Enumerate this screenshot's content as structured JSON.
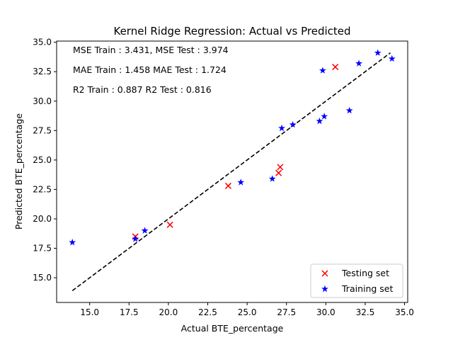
{
  "chart_data": {
    "type": "scatter",
    "title": "Kernel Ridge Regression: Actual vs Predicted",
    "xlabel": "Actual BTE_percentage",
    "ylabel": "Predicted BTE_percentage",
    "xlim": [
      12.9,
      35.2
    ],
    "ylim": [
      12.9,
      35.1
    ],
    "xticks": [
      15.0,
      17.5,
      20.0,
      22.5,
      25.0,
      27.5,
      30.0,
      32.5,
      35.0
    ],
    "yticks": [
      15.0,
      17.5,
      20.0,
      22.5,
      25.0,
      27.5,
      30.0,
      32.5,
      35.0
    ],
    "xtick_labels": [
      "15.0",
      "17.5",
      "20.0",
      "22.5",
      "25.0",
      "27.5",
      "30.0",
      "32.5",
      "35.0"
    ],
    "ytick_labels": [
      "15.0",
      "17.5",
      "20.0",
      "22.5",
      "25.0",
      "27.5",
      "30.0",
      "32.5",
      "35.0"
    ],
    "grid": false,
    "legend_position": "bottom-right",
    "annotations": [
      "MSE Train : 3.431, MSE Test  : 3.974",
      "MAE Train  : 1.458 MAE Test  : 1.724",
      "R2 Train  : 0.887 R2 Test  : 0.816"
    ],
    "reference_line": {
      "x": [
        13.9,
        34.1
      ],
      "y": [
        13.9,
        34.1
      ],
      "style": "dashed",
      "color": "#000000"
    },
    "series": [
      {
        "name": "Testing set",
        "marker": "x",
        "color": "#ff0000",
        "x": [
          17.9,
          20.1,
          23.8,
          27.0,
          27.1,
          30.6
        ],
        "y": [
          18.5,
          19.5,
          22.8,
          23.9,
          24.4,
          32.9
        ]
      },
      {
        "name": "Training set",
        "marker": "star",
        "color": "#0000ff",
        "x": [
          13.9,
          17.9,
          18.5,
          24.6,
          26.6,
          27.2,
          27.9,
          29.6,
          29.8,
          29.9,
          31.5,
          32.1,
          33.3,
          34.2
        ],
        "y": [
          18.0,
          18.3,
          19.0,
          23.1,
          23.4,
          27.7,
          28.0,
          28.3,
          32.6,
          28.7,
          29.2,
          33.2,
          34.1,
          33.6
        ]
      }
    ]
  }
}
